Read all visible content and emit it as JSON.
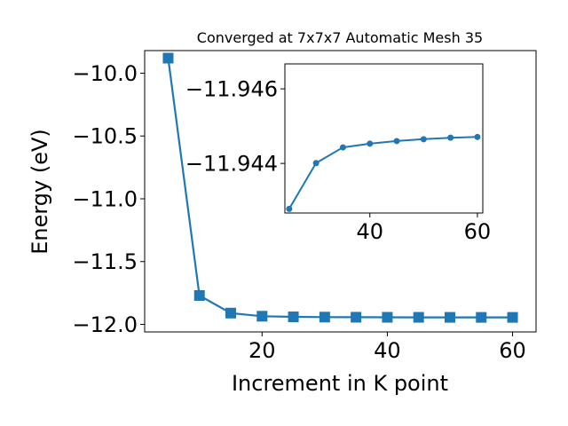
{
  "chart_data": [
    {
      "type": "line",
      "title": "Converged at 7x7x7 Automatic Mesh 35",
      "xlabel": "Increment in K point",
      "ylabel": "Energy (eV)",
      "xlim": [
        1.25,
        63.75
      ],
      "ylim": [
        -12.06,
        -9.82
      ],
      "xticks": [
        20,
        40,
        60
      ],
      "yticks": [
        -10.0,
        -10.5,
        -11.0,
        -11.5,
        -12.0
      ],
      "ytick_labels": [
        "−10.0",
        "−10.5",
        "−11.0",
        "−11.5",
        "−12.0"
      ],
      "grid": false,
      "color": "#1f77b4",
      "marker": "square",
      "x": [
        5,
        10,
        15,
        20,
        25,
        30,
        35,
        40,
        45,
        50,
        55,
        60
      ],
      "y": [
        -9.88,
        -11.77,
        -11.91,
        -11.935,
        -11.94,
        -11.942,
        -11.943,
        -11.9435,
        -11.9438,
        -11.944,
        -11.9442,
        -11.9443
      ]
    },
    {
      "type": "line",
      "title": "",
      "xlabel": "",
      "ylabel": "",
      "placement": "inset-top-right",
      "xlim": [
        24.2,
        61.0
      ],
      "ylim": [
        -11.94267,
        -11.94667
      ],
      "y_axis_inverted": true,
      "xticks": [
        40,
        60
      ],
      "yticks": [
        -11.946,
        -11.944
      ],
      "ytick_labels": [
        "−11.946",
        "−11.944"
      ],
      "grid": false,
      "color": "#1f77b4",
      "marker": "circle",
      "x": [
        25,
        30,
        35,
        40,
        45,
        50,
        55,
        60
      ],
      "y": [
        -11.94278,
        -11.94401,
        -11.94443,
        -11.94453,
        -11.9446,
        -11.94465,
        -11.94469,
        -11.94471
      ]
    }
  ]
}
